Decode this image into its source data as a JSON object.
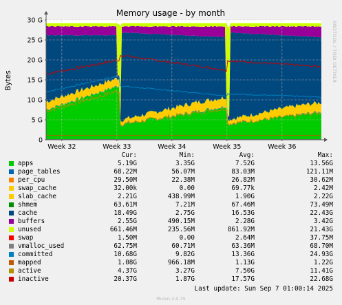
{
  "chart_data": {
    "type": "area",
    "title": "Memory usage - by month",
    "ylabel": "Bytes",
    "watermark": "RRDTOOL / TOBI OETIKER",
    "ylim": [
      0,
      30
    ],
    "yticks": [
      {
        "v": 0,
        "label": "0"
      },
      {
        "v": 5,
        "label": "5 G"
      },
      {
        "v": 10,
        "label": "10 G"
      },
      {
        "v": 15,
        "label": "15 G"
      },
      {
        "v": 20,
        "label": "20 G"
      },
      {
        "v": 25,
        "label": "25 G"
      },
      {
        "v": 30,
        "label": "30 G"
      }
    ],
    "xlim": [
      0,
      35
    ],
    "xticks": [
      {
        "v": 2,
        "label": "Week 32"
      },
      {
        "v": 9,
        "label": "Week 33"
      },
      {
        "v": 16,
        "label": "Week 34"
      },
      {
        "v": 23,
        "label": "Week 35"
      },
      {
        "v": 30,
        "label": "Week 36"
      }
    ],
    "grid": true,
    "restarts_day": [
      9.3,
      23.1
    ],
    "stack_order": [
      "apps",
      "page_tables",
      "per_cpu",
      "swap_cache",
      "slab_cache",
      "shmem",
      "cache",
      "buffers",
      "unused"
    ],
    "columns": [
      "Cur:",
      "Min:",
      "Avg:",
      "Max:"
    ],
    "series": [
      {
        "name": "apps",
        "color": "#00cc00",
        "cur": "5.19G",
        "min": "3.35G",
        "avg": "7.52G",
        "max": "13.56G"
      },
      {
        "name": "page_tables",
        "color": "#0066b3",
        "cur": "68.22M",
        "min": "56.07M",
        "avg": "83.03M",
        "max": "121.11M"
      },
      {
        "name": "per_cpu",
        "color": "#ff8000",
        "cur": "29.50M",
        "min": "22.38M",
        "avg": "26.82M",
        "max": "30.62M"
      },
      {
        "name": "swap_cache",
        "color": "#ffcc00",
        "cur": "32.00k",
        "min": "0.00",
        "avg": "69.77k",
        "max": "2.42M"
      },
      {
        "name": "slab_cache",
        "color": "#ffcc00",
        "cur": "2.21G",
        "min": "438.99M",
        "avg": "1.90G",
        "max": "2.22G"
      },
      {
        "name": "shmem",
        "color": "#008f00",
        "cur": "63.61M",
        "min": "7.21M",
        "avg": "67.46M",
        "max": "73.49M"
      },
      {
        "name": "cache",
        "color": "#00487d",
        "cur": "18.49G",
        "min": "2.75G",
        "avg": "16.53G",
        "max": "22.43G"
      },
      {
        "name": "buffers",
        "color": "#990099",
        "cur": "2.55G",
        "min": "490.15M",
        "avg": "2.28G",
        "max": "3.42G"
      },
      {
        "name": "unused",
        "color": "#ccff00",
        "cur": "661.46M",
        "min": "235.56M",
        "avg": "861.92M",
        "max": "21.43G"
      },
      {
        "name": "swap",
        "color": "#ff0000",
        "cur": "1.50M",
        "min": "0.00",
        "avg": "2.64M",
        "max": "37.75M"
      },
      {
        "name": "vmalloc_used",
        "color": "#808080",
        "cur": "62.75M",
        "min": "60.71M",
        "avg": "63.36M",
        "max": "68.70M"
      },
      {
        "name": "committed",
        "color": "#0080c0",
        "cur": "10.68G",
        "min": "9.82G",
        "avg": "13.36G",
        "max": "24.93G"
      },
      {
        "name": "mapped",
        "color": "#c05800",
        "cur": "1.08G",
        "min": "966.18M",
        "avg": "1.13G",
        "max": "1.22G"
      },
      {
        "name": "active",
        "color": "#b09000",
        "cur": "4.37G",
        "min": "3.27G",
        "avg": "7.50G",
        "max": "11.41G"
      },
      {
        "name": "inactive",
        "color": "#cc0000",
        "cur": "20.37G",
        "min": "1.87G",
        "avg": "17.57G",
        "max": "22.68G"
      }
    ]
  },
  "last_update": "Last update:  Sun Sep  7 01:00:14 2025",
  "footer": "Munin 2.0.75"
}
